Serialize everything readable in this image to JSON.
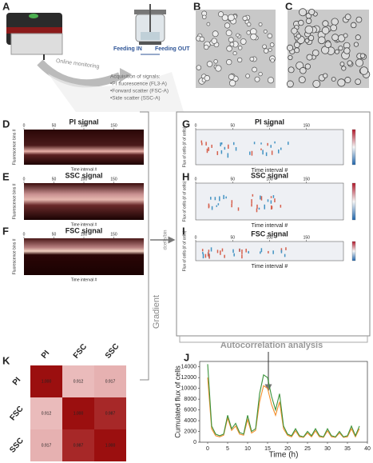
{
  "panel_labels": [
    "A",
    "B",
    "C",
    "D",
    "E",
    "F",
    "G",
    "H",
    "I",
    "J",
    "K"
  ],
  "panel_a": {
    "online_monitoring": "Online monitoring",
    "feeding_in": "Feeding IN",
    "feeding_out": "Feeding OUT",
    "acquisition_title": "Acquisition of signals:",
    "signals": [
      "•PI fluorescence (FL3-A)",
      "•Forward scatter (FSC-A)",
      "•Side scatter (SSC-A)"
    ]
  },
  "heatmaps": [
    {
      "title": "PI signal",
      "x_axis": "Time interval #",
      "y_axis": "Fluorescence bins #",
      "xlim": [
        0,
        200
      ],
      "xticks": [
        0,
        50,
        100,
        150
      ]
    },
    {
      "title": "SSC signal",
      "x_axis": "Time interval #",
      "y_axis": "Fluorescence bins #",
      "xlim": [
        0,
        200
      ],
      "xticks": [
        0,
        50,
        100,
        150
      ]
    },
    {
      "title": "FSC signal",
      "x_axis": "Time interval #",
      "y_axis": "Fluorescence bins #",
      "xlim": [
        0,
        200
      ],
      "xticks": [
        0,
        50,
        100,
        150
      ]
    }
  ],
  "gradient": {
    "label": "Gradient",
    "numerator": "dcells/bin",
    "denominator": "dt"
  },
  "flux_maps": [
    {
      "title": "PI signal",
      "x_axis": "Time interval #",
      "y_axis": "Flux of cells (# of cells)",
      "xlim": [
        0,
        200
      ],
      "xticks": [
        0,
        50,
        100,
        150
      ]
    },
    {
      "title": "SSC signal",
      "x_axis": "Time interval #",
      "y_axis": "Flux of cells (# of cells)",
      "xlim": [
        0,
        200
      ],
      "xticks": [
        0,
        50,
        100,
        150
      ]
    },
    {
      "title": "FSC signal",
      "x_axis": "Time interval #",
      "y_axis": "Flux of cells (# of cells)",
      "xlim": [
        0,
        200
      ],
      "xticks": [
        0,
        50,
        100,
        150
      ]
    }
  ],
  "autocorrelation": "Autocorrelation analysis",
  "correlation_matrix": {
    "labels": [
      "PI",
      "FSC",
      "SSC"
    ],
    "values": [
      [
        1.0,
        0.912,
        0.917
      ],
      [
        0.912,
        1.0,
        0.987
      ],
      [
        0.917,
        0.987,
        1.0
      ]
    ],
    "value_labels": [
      [
        "1.000",
        "0.912",
        "0.917"
      ],
      [
        "0.912",
        "1.000",
        "0.987"
      ],
      [
        "0.917",
        "0.987",
        "1.000"
      ]
    ]
  },
  "line_chart": {
    "type": "line",
    "xlabel": "Time (h)",
    "ylabel": "Cumulated flux of cells",
    "xlim": [
      -2,
      40
    ],
    "ylim": [
      0,
      15000
    ],
    "xticks": [
      0,
      5,
      10,
      15,
      20,
      25,
      30,
      35,
      40
    ],
    "yticks": [
      0,
      2000,
      4000,
      6000,
      8000,
      10000,
      12000,
      14000
    ],
    "x": [
      0,
      1,
      2,
      3,
      4,
      5,
      6,
      7,
      8,
      9,
      10,
      11,
      12,
      13,
      14,
      15,
      16,
      17,
      18,
      19,
      20,
      21,
      22,
      23,
      24,
      25,
      26,
      27,
      28,
      29,
      30,
      31,
      32,
      33,
      34,
      35,
      36,
      37,
      38
    ],
    "series": [
      {
        "color": "#f28e2b",
        "values": [
          12000,
          2500,
          1200,
          1000,
          1300,
          4500,
          2200,
          3000,
          1500,
          1300,
          4200,
          1700,
          2200,
          7500,
          10500,
          10000,
          7000,
          5000,
          7500,
          2500,
          1300,
          1000,
          2100,
          1000,
          900,
          1700,
          1000,
          2100,
          1000,
          900,
          2100,
          1000,
          900,
          1700,
          900,
          1000,
          2500,
          1000,
          2500
        ]
      },
      {
        "color": "#3a923a",
        "values": [
          14500,
          3000,
          1500,
          1200,
          1500,
          5000,
          2500,
          3500,
          1800,
          1500,
          5000,
          2000,
          2500,
          9000,
          12500,
          12000,
          8500,
          6000,
          9000,
          3000,
          1500,
          1200,
          2500,
          1200,
          1000,
          2000,
          1200,
          2500,
          1200,
          1000,
          2500,
          1200,
          1000,
          2000,
          1000,
          1200,
          3000,
          1200,
          3000
        ]
      }
    ]
  }
}
